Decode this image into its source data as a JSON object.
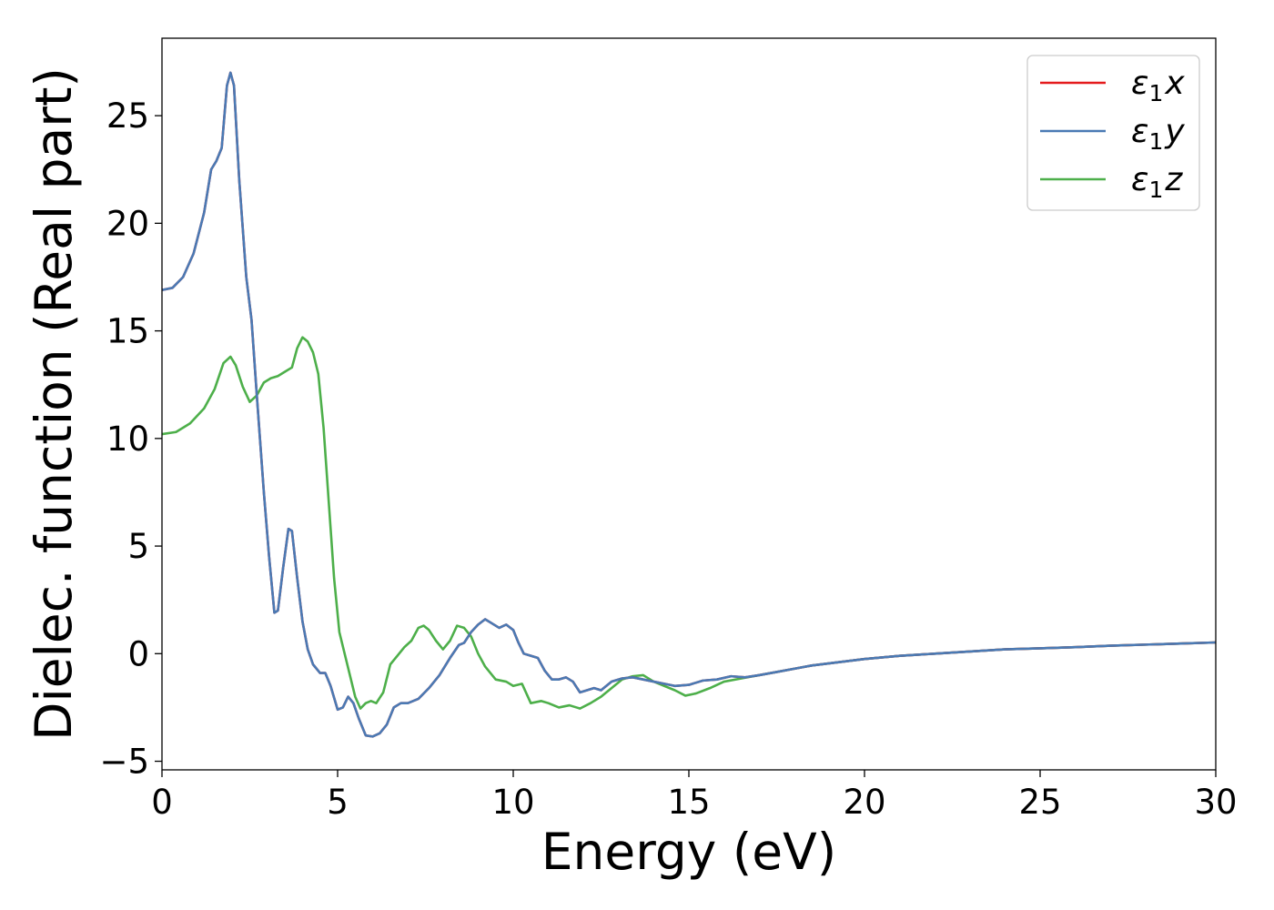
{
  "chart_data": {
    "type": "line",
    "title": "",
    "xlabel": "Energy (eV)",
    "ylabel": "Dielec. function (Real part)",
    "xlim": [
      0,
      30
    ],
    "ylim": [
      -5.4,
      28.6
    ],
    "xticks": [
      0,
      5,
      10,
      15,
      20,
      25,
      30
    ],
    "xtick_labels": [
      "0",
      "5",
      "10",
      "15",
      "20",
      "25",
      "30"
    ],
    "yticks": [
      -5,
      0,
      5,
      10,
      15,
      20,
      25
    ],
    "ytick_labels": [
      "−5",
      "0",
      "5",
      "10",
      "15",
      "20",
      "25"
    ],
    "grid": false,
    "legend_position": "top-right",
    "series": [
      {
        "name": "ε₁x",
        "legend": {
          "base": "ε",
          "sub": "1",
          "suffix": "x"
        },
        "color": "#e41a1c",
        "points": [
          [
            0,
            16.9
          ],
          [
            0.3,
            17.0
          ],
          [
            0.6,
            17.5
          ],
          [
            0.9,
            18.6
          ],
          [
            1.2,
            20.5
          ],
          [
            1.4,
            22.5
          ],
          [
            1.55,
            22.9
          ],
          [
            1.7,
            23.5
          ],
          [
            1.85,
            26.4
          ],
          [
            1.95,
            27.0
          ],
          [
            2.05,
            26.4
          ],
          [
            2.2,
            22.0
          ],
          [
            2.4,
            17.5
          ],
          [
            2.55,
            15.5
          ],
          [
            2.7,
            12.0
          ],
          [
            2.9,
            7.5
          ],
          [
            3.05,
            4.5
          ],
          [
            3.2,
            1.9
          ],
          [
            3.3,
            2.0
          ],
          [
            3.45,
            4.0
          ],
          [
            3.6,
            5.8
          ],
          [
            3.7,
            5.7
          ],
          [
            3.85,
            3.5
          ],
          [
            4.0,
            1.5
          ],
          [
            4.15,
            0.2
          ],
          [
            4.3,
            -0.5
          ],
          [
            4.5,
            -0.9
          ],
          [
            4.65,
            -0.9
          ],
          [
            4.8,
            -1.5
          ],
          [
            5.0,
            -2.6
          ],
          [
            5.15,
            -2.5
          ],
          [
            5.3,
            -2.0
          ],
          [
            5.45,
            -2.3
          ],
          [
            5.6,
            -3.0
          ],
          [
            5.8,
            -3.8
          ],
          [
            6.0,
            -3.85
          ],
          [
            6.2,
            -3.7
          ],
          [
            6.4,
            -3.3
          ],
          [
            6.6,
            -2.5
          ],
          [
            6.8,
            -2.3
          ],
          [
            7.0,
            -2.3
          ],
          [
            7.3,
            -2.1
          ],
          [
            7.6,
            -1.6
          ],
          [
            7.9,
            -1.0
          ],
          [
            8.2,
            -0.2
          ],
          [
            8.45,
            0.4
          ],
          [
            8.6,
            0.5
          ],
          [
            8.8,
            1.0
          ],
          [
            9.0,
            1.35
          ],
          [
            9.2,
            1.6
          ],
          [
            9.4,
            1.4
          ],
          [
            9.6,
            1.2
          ],
          [
            9.8,
            1.35
          ],
          [
            10.0,
            1.1
          ],
          [
            10.15,
            0.5
          ],
          [
            10.3,
            0.0
          ],
          [
            10.5,
            -0.1
          ],
          [
            10.7,
            -0.2
          ],
          [
            10.9,
            -0.8
          ],
          [
            11.1,
            -1.2
          ],
          [
            11.3,
            -1.2
          ],
          [
            11.5,
            -1.1
          ],
          [
            11.7,
            -1.3
          ],
          [
            11.9,
            -1.8
          ],
          [
            12.1,
            -1.7
          ],
          [
            12.3,
            -1.6
          ],
          [
            12.5,
            -1.7
          ],
          [
            12.8,
            -1.3
          ],
          [
            13.1,
            -1.15
          ],
          [
            13.4,
            -1.1
          ],
          [
            13.7,
            -1.2
          ],
          [
            14.0,
            -1.3
          ],
          [
            14.3,
            -1.4
          ],
          [
            14.6,
            -1.5
          ],
          [
            15.0,
            -1.45
          ],
          [
            15.4,
            -1.25
          ],
          [
            15.8,
            -1.2
          ],
          [
            16.2,
            -1.05
          ],
          [
            16.6,
            -1.1
          ],
          [
            17.0,
            -1.0
          ],
          [
            17.5,
            -0.85
          ],
          [
            18.0,
            -0.7
          ],
          [
            18.5,
            -0.55
          ],
          [
            19.0,
            -0.45
          ],
          [
            19.5,
            -0.35
          ],
          [
            20.0,
            -0.25
          ],
          [
            21.0,
            -0.1
          ],
          [
            22.0,
            0.0
          ],
          [
            23.0,
            0.1
          ],
          [
            24.0,
            0.2
          ],
          [
            25.0,
            0.25
          ],
          [
            26.0,
            0.3
          ],
          [
            27.0,
            0.37
          ],
          [
            28.0,
            0.42
          ],
          [
            29.0,
            0.47
          ],
          [
            30.0,
            0.52
          ]
        ]
      },
      {
        "name": "ε₁y",
        "legend": {
          "base": "ε",
          "sub": "1",
          "suffix": "y"
        },
        "color": "#4a7ab4",
        "points": [
          [
            0,
            16.9
          ],
          [
            0.3,
            17.0
          ],
          [
            0.6,
            17.5
          ],
          [
            0.9,
            18.6
          ],
          [
            1.2,
            20.5
          ],
          [
            1.4,
            22.5
          ],
          [
            1.55,
            22.9
          ],
          [
            1.7,
            23.5
          ],
          [
            1.85,
            26.4
          ],
          [
            1.95,
            27.0
          ],
          [
            2.05,
            26.4
          ],
          [
            2.2,
            22.0
          ],
          [
            2.4,
            17.5
          ],
          [
            2.55,
            15.5
          ],
          [
            2.7,
            12.0
          ],
          [
            2.9,
            7.5
          ],
          [
            3.05,
            4.5
          ],
          [
            3.2,
            1.9
          ],
          [
            3.3,
            2.0
          ],
          [
            3.45,
            4.0
          ],
          [
            3.6,
            5.8
          ],
          [
            3.7,
            5.7
          ],
          [
            3.85,
            3.5
          ],
          [
            4.0,
            1.5
          ],
          [
            4.15,
            0.2
          ],
          [
            4.3,
            -0.5
          ],
          [
            4.5,
            -0.9
          ],
          [
            4.65,
            -0.9
          ],
          [
            4.8,
            -1.5
          ],
          [
            5.0,
            -2.6
          ],
          [
            5.15,
            -2.5
          ],
          [
            5.3,
            -2.0
          ],
          [
            5.45,
            -2.3
          ],
          [
            5.6,
            -3.0
          ],
          [
            5.8,
            -3.8
          ],
          [
            6.0,
            -3.85
          ],
          [
            6.2,
            -3.7
          ],
          [
            6.4,
            -3.3
          ],
          [
            6.6,
            -2.5
          ],
          [
            6.8,
            -2.3
          ],
          [
            7.0,
            -2.3
          ],
          [
            7.3,
            -2.1
          ],
          [
            7.6,
            -1.6
          ],
          [
            7.9,
            -1.0
          ],
          [
            8.2,
            -0.2
          ],
          [
            8.45,
            0.4
          ],
          [
            8.6,
            0.5
          ],
          [
            8.8,
            1.0
          ],
          [
            9.0,
            1.35
          ],
          [
            9.2,
            1.6
          ],
          [
            9.4,
            1.4
          ],
          [
            9.6,
            1.2
          ],
          [
            9.8,
            1.35
          ],
          [
            10.0,
            1.1
          ],
          [
            10.15,
            0.5
          ],
          [
            10.3,
            0.0
          ],
          [
            10.5,
            -0.1
          ],
          [
            10.7,
            -0.2
          ],
          [
            10.9,
            -0.8
          ],
          [
            11.1,
            -1.2
          ],
          [
            11.3,
            -1.2
          ],
          [
            11.5,
            -1.1
          ],
          [
            11.7,
            -1.3
          ],
          [
            11.9,
            -1.8
          ],
          [
            12.1,
            -1.7
          ],
          [
            12.3,
            -1.6
          ],
          [
            12.5,
            -1.7
          ],
          [
            12.8,
            -1.3
          ],
          [
            13.1,
            -1.15
          ],
          [
            13.4,
            -1.1
          ],
          [
            13.7,
            -1.2
          ],
          [
            14.0,
            -1.3
          ],
          [
            14.3,
            -1.4
          ],
          [
            14.6,
            -1.5
          ],
          [
            15.0,
            -1.45
          ],
          [
            15.4,
            -1.25
          ],
          [
            15.8,
            -1.2
          ],
          [
            16.2,
            -1.05
          ],
          [
            16.6,
            -1.1
          ],
          [
            17.0,
            -1.0
          ],
          [
            17.5,
            -0.85
          ],
          [
            18.0,
            -0.7
          ],
          [
            18.5,
            -0.55
          ],
          [
            19.0,
            -0.45
          ],
          [
            19.5,
            -0.35
          ],
          [
            20.0,
            -0.25
          ],
          [
            21.0,
            -0.1
          ],
          [
            22.0,
            0.0
          ],
          [
            23.0,
            0.1
          ],
          [
            24.0,
            0.2
          ],
          [
            25.0,
            0.25
          ],
          [
            26.0,
            0.3
          ],
          [
            27.0,
            0.37
          ],
          [
            28.0,
            0.42
          ],
          [
            29.0,
            0.47
          ],
          [
            30.0,
            0.52
          ]
        ]
      },
      {
        "name": "ε₁z",
        "legend": {
          "base": "ε",
          "sub": "1",
          "suffix": "z"
        },
        "color": "#4daf4a",
        "points": [
          [
            0,
            10.2
          ],
          [
            0.4,
            10.3
          ],
          [
            0.8,
            10.7
          ],
          [
            1.2,
            11.4
          ],
          [
            1.5,
            12.3
          ],
          [
            1.75,
            13.5
          ],
          [
            1.95,
            13.8
          ],
          [
            2.1,
            13.4
          ],
          [
            2.3,
            12.4
          ],
          [
            2.5,
            11.7
          ],
          [
            2.7,
            12.0
          ],
          [
            2.9,
            12.6
          ],
          [
            3.1,
            12.8
          ],
          [
            3.3,
            12.9
          ],
          [
            3.5,
            13.1
          ],
          [
            3.7,
            13.3
          ],
          [
            3.85,
            14.2
          ],
          [
            4.0,
            14.7
          ],
          [
            4.15,
            14.5
          ],
          [
            4.3,
            14.0
          ],
          [
            4.45,
            13.0
          ],
          [
            4.6,
            10.5
          ],
          [
            4.75,
            7.0
          ],
          [
            4.9,
            3.5
          ],
          [
            5.05,
            1.0
          ],
          [
            5.2,
            0.0
          ],
          [
            5.35,
            -1.0
          ],
          [
            5.5,
            -2.0
          ],
          [
            5.65,
            -2.55
          ],
          [
            5.8,
            -2.3
          ],
          [
            5.95,
            -2.2
          ],
          [
            6.1,
            -2.3
          ],
          [
            6.3,
            -1.8
          ],
          [
            6.5,
            -0.5
          ],
          [
            6.7,
            -0.1
          ],
          [
            6.9,
            0.3
          ],
          [
            7.1,
            0.6
          ],
          [
            7.3,
            1.2
          ],
          [
            7.45,
            1.3
          ],
          [
            7.6,
            1.1
          ],
          [
            7.8,
            0.6
          ],
          [
            8.0,
            0.2
          ],
          [
            8.2,
            0.6
          ],
          [
            8.4,
            1.3
          ],
          [
            8.6,
            1.2
          ],
          [
            8.8,
            0.8
          ],
          [
            9.0,
            0.0
          ],
          [
            9.2,
            -0.6
          ],
          [
            9.5,
            -1.2
          ],
          [
            9.8,
            -1.3
          ],
          [
            10.0,
            -1.5
          ],
          [
            10.25,
            -1.4
          ],
          [
            10.5,
            -2.3
          ],
          [
            10.8,
            -2.2
          ],
          [
            11.0,
            -2.3
          ],
          [
            11.3,
            -2.5
          ],
          [
            11.6,
            -2.4
          ],
          [
            11.9,
            -2.55
          ],
          [
            12.2,
            -2.3
          ],
          [
            12.5,
            -2.0
          ],
          [
            12.8,
            -1.6
          ],
          [
            13.1,
            -1.2
          ],
          [
            13.4,
            -1.05
          ],
          [
            13.7,
            -1.0
          ],
          [
            14.0,
            -1.3
          ],
          [
            14.3,
            -1.5
          ],
          [
            14.6,
            -1.7
          ],
          [
            14.9,
            -1.95
          ],
          [
            15.2,
            -1.85
          ],
          [
            15.6,
            -1.6
          ],
          [
            16.0,
            -1.3
          ],
          [
            16.5,
            -1.15
          ],
          [
            17.0,
            -1.0
          ],
          [
            17.5,
            -0.85
          ],
          [
            18.0,
            -0.7
          ],
          [
            18.5,
            -0.55
          ],
          [
            19.0,
            -0.45
          ],
          [
            19.5,
            -0.35
          ],
          [
            20.0,
            -0.25
          ],
          [
            21.0,
            -0.1
          ],
          [
            22.0,
            0.0
          ],
          [
            23.0,
            0.1
          ],
          [
            24.0,
            0.2
          ],
          [
            25.0,
            0.25
          ],
          [
            26.0,
            0.3
          ],
          [
            27.0,
            0.37
          ],
          [
            28.0,
            0.42
          ],
          [
            29.0,
            0.47
          ],
          [
            30.0,
            0.52
          ]
        ]
      }
    ]
  }
}
